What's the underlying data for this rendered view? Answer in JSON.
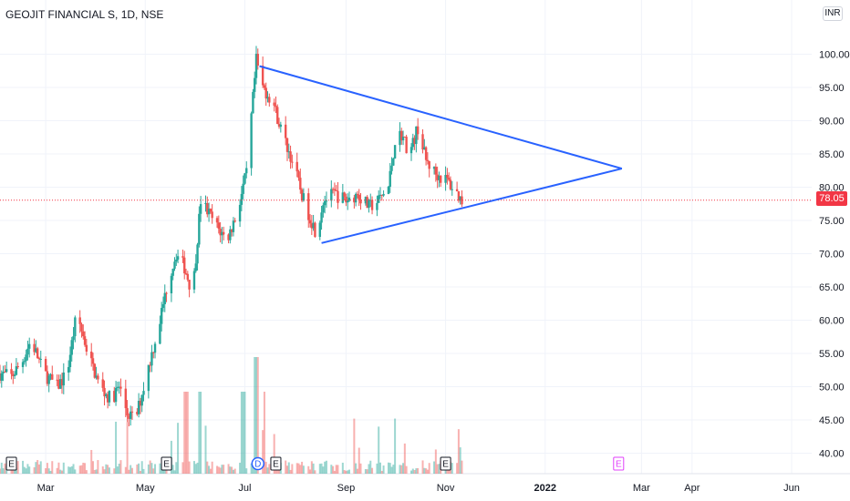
{
  "header": {
    "symbol_title": "GEOJIT FINANCIAL S, 1D, NSE",
    "currency_badge": "INR"
  },
  "price_axis": {
    "last_price_label": "78.05"
  },
  "colors": {
    "up": "#26a69a",
    "down": "#ef5350",
    "pattern_line": "#2962ff",
    "last_price": "#f23645",
    "grid": "#f0f3fa",
    "event_E": "#131722",
    "event_D": "#2962ff",
    "event_future_E": "#e040fb"
  },
  "chart_data": {
    "type": "candlestick",
    "title": "GEOJIT FINANCIAL S, 1D, NSE",
    "y_axis": {
      "ticks": [
        "100.00",
        "95.00",
        "90.00",
        "85.00",
        "80.00",
        "75.00",
        "70.00",
        "65.00",
        "60.00",
        "55.00",
        "50.00",
        "45.00",
        "40.00"
      ],
      "range": [
        37.5,
        105
      ]
    },
    "x_axis": {
      "ticks": [
        "Mar",
        "May",
        "Jul",
        "Sep",
        "Nov",
        "2022",
        "Mar",
        "Apr",
        "Jun"
      ]
    },
    "last_price": 78.05,
    "series": [
      {
        "type": "price_path",
        "points": [
          [
            "2021-02-01",
            52
          ],
          [
            "2021-02-08",
            51.5
          ],
          [
            "2021-02-15",
            54
          ],
          [
            "2021-02-20",
            57
          ],
          [
            "2021-02-28",
            52
          ],
          [
            "2021-03-08",
            50
          ],
          [
            "2021-03-14",
            52
          ],
          [
            "2021-03-20",
            61
          ],
          [
            "2021-03-27",
            55
          ],
          [
            "2021-04-03",
            50
          ],
          [
            "2021-04-10",
            48
          ],
          [
            "2021-04-15",
            50
          ],
          [
            "2021-04-20",
            46
          ],
          [
            "2021-04-25",
            45
          ],
          [
            "2021-04-30",
            50
          ],
          [
            "2021-05-05",
            55
          ],
          [
            "2021-05-10",
            60
          ],
          [
            "2021-05-15",
            66
          ],
          [
            "2021-05-20",
            70
          ],
          [
            "2021-05-25",
            68
          ],
          [
            "2021-05-30",
            64
          ],
          [
            "2021-06-04",
            78
          ],
          [
            "2021-06-09",
            76
          ],
          [
            "2021-06-14",
            74
          ],
          [
            "2021-06-20",
            72
          ],
          [
            "2021-06-26",
            76
          ],
          [
            "2021-07-02",
            82
          ],
          [
            "2021-07-08",
            99
          ],
          [
            "2021-07-12",
            95
          ],
          [
            "2021-07-18",
            93
          ],
          [
            "2021-07-24",
            88
          ],
          [
            "2021-07-30",
            84
          ],
          [
            "2021-08-06",
            78
          ],
          [
            "2021-08-14",
            73
          ],
          [
            "2021-08-18",
            78
          ],
          [
            "2021-08-25",
            79
          ],
          [
            "2021-09-01",
            78
          ],
          [
            "2021-09-08",
            79
          ],
          [
            "2021-09-15",
            77
          ],
          [
            "2021-09-21",
            78
          ],
          [
            "2021-09-27",
            80
          ],
          [
            "2021-10-01",
            87
          ],
          [
            "2021-10-05",
            88
          ],
          [
            "2021-10-10",
            85
          ],
          [
            "2021-10-15",
            89
          ],
          [
            "2021-10-20",
            84
          ],
          [
            "2021-10-26",
            82
          ],
          [
            "2021-11-02",
            81
          ],
          [
            "2021-11-08",
            79
          ],
          [
            "2021-11-11",
            78
          ]
        ]
      },
      {
        "type": "volume",
        "peaks": [
          [
            "2021-05-26",
            "high"
          ],
          [
            "2021-06-04",
            "high"
          ],
          [
            "2021-06-30",
            "high"
          ],
          [
            "2021-07-08",
            "very high"
          ],
          [
            "2021-07-12",
            "high"
          ]
        ]
      },
      {
        "type": "trendline",
        "name": "symmetrical triangle",
        "segments": [
          [
            [
              "2021-07-10",
              98.2
            ],
            [
              "2022-02-17",
              82.8
            ]
          ],
          [
            [
              "2021-08-17",
              71.6
            ],
            [
              "2022-02-17",
              82.8
            ]
          ]
        ]
      }
    ],
    "events": [
      {
        "type": "E",
        "date": "2021-02-08"
      },
      {
        "type": "E",
        "date": "2021-05-14"
      },
      {
        "type": "D",
        "date": "2021-07-09"
      },
      {
        "type": "E",
        "date": "2021-07-20"
      },
      {
        "type": "E",
        "date": "2021-11-01"
      },
      {
        "type": "E",
        "date": "2022-02-15",
        "future": true
      }
    ],
    "grid": true
  }
}
